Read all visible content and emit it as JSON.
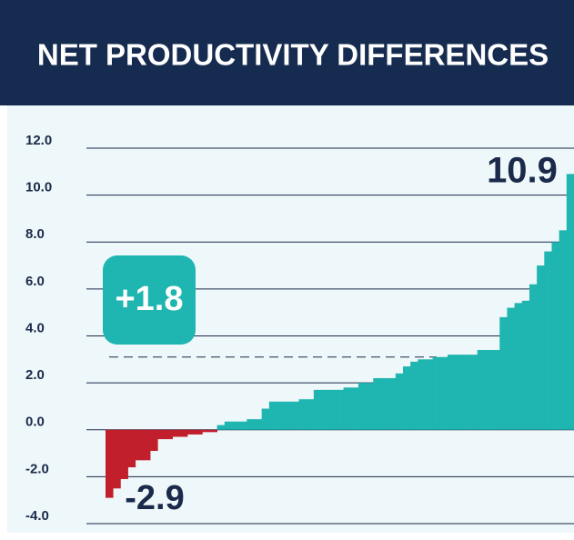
{
  "chart_data": {
    "type": "bar",
    "title": "NET PRODUCTIVITY DIFFERENCES",
    "values": [
      -2.9,
      -2.5,
      -2.1,
      -1.6,
      -1.3,
      -1.3,
      -0.9,
      -0.4,
      -0.4,
      -0.3,
      -0.3,
      -0.2,
      -0.2,
      -0.1,
      -0.1,
      0.2,
      0.35,
      0.35,
      0.35,
      0.45,
      0.45,
      0.9,
      1.2,
      1.2,
      1.2,
      1.2,
      1.3,
      1.3,
      1.7,
      1.7,
      1.7,
      1.7,
      1.8,
      1.8,
      2.0,
      2.0,
      2.2,
      2.2,
      2.2,
      2.4,
      2.7,
      2.9,
      3.0,
      3.0,
      3.1,
      3.1,
      3.2,
      3.2,
      3.2,
      3.2,
      3.4,
      3.4,
      3.4,
      4.8,
      5.2,
      5.4,
      5.5,
      6.2,
      7.0,
      7.6,
      8.0,
      8.5,
      10.9
    ],
    "positive_color": "#1fb5b0",
    "negative_color": "#c11f2b",
    "ylim": [
      -4,
      12
    ],
    "yticks": [
      {
        "value": 12,
        "label": "12.0"
      },
      {
        "value": 10,
        "label": "10.0"
      },
      {
        "value": 8,
        "label": "8.0"
      },
      {
        "value": 6,
        "label": "6.0"
      },
      {
        "value": 4,
        "label": "4.0"
      },
      {
        "value": 2,
        "label": "2.0"
      },
      {
        "value": 0,
        "label": "0.0"
      },
      {
        "value": -2,
        "label": "-2.0"
      },
      {
        "value": -4,
        "label": "-4.0"
      }
    ],
    "grid": true,
    "reference_line": 3.1,
    "annotations": [
      "10.9",
      "-2.9",
      "+1.8"
    ]
  }
}
